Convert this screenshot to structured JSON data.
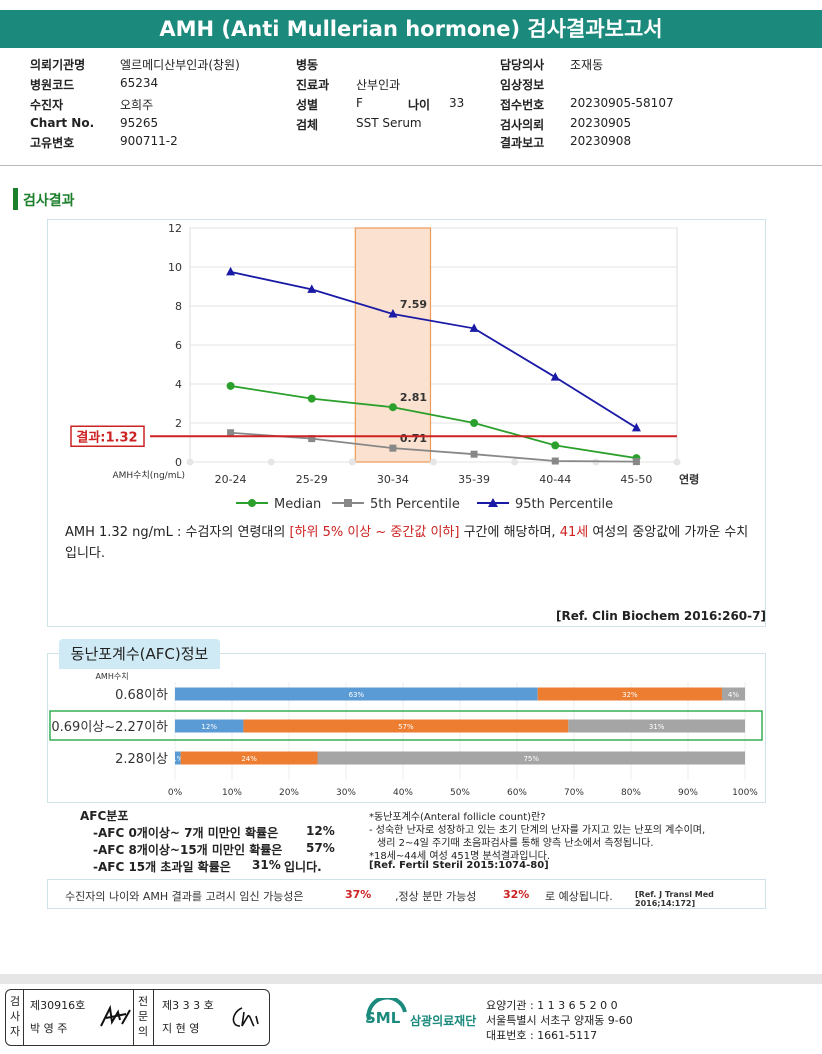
{
  "header": {
    "title": "AMH (Anti Mullerian hormone) 검사결과보고서"
  },
  "info": {
    "institution_label": "의뢰기관명",
    "institution": "엘르메디산부인과(창원)",
    "hospital_code_label": "병원코드",
    "hospital_code": "65234",
    "patient_label": "수진자",
    "patient": "오희주",
    "chart_no_label": "Chart No.",
    "chart_no": "95265",
    "id_label": "고유변호",
    "id": "900711-2",
    "ward_label": "병동",
    "ward": "",
    "dept_label": "진료과",
    "dept": "산부인과",
    "sex_label": "성별",
    "sex": "F",
    "age_label": "나이",
    "age": "33",
    "specimen_label": "검체",
    "specimen": "SST Serum",
    "doctor_label": "담당의사",
    "doctor": "조재동",
    "clinical_label": "임상정보",
    "clinical": "",
    "receipt_label": "접수번호",
    "receipt": "20230905-58107",
    "request_label": "검사의뢰",
    "request": "20230905",
    "report_label": "결과보고",
    "report": "20230908"
  },
  "section": {
    "title": "검사결과"
  },
  "chart_data": {
    "type": "line",
    "categories": [
      "20-24",
      "25-29",
      "30-34",
      "35-39",
      "40-44",
      "45-50"
    ],
    "ylim": [
      0,
      12
    ],
    "yticks": [
      0,
      2,
      4,
      6,
      8,
      10,
      12
    ],
    "ylabel": "AMH수치(ng/mL)",
    "xlabel": "연령",
    "highlight_category": "30-34",
    "series": [
      {
        "name": "Median",
        "color": "#2ca02c",
        "marker": "circle",
        "values": [
          3.9,
          3.25,
          2.81,
          2.0,
          0.85,
          0.2
        ]
      },
      {
        "name": "5th Percentile",
        "color": "#888888",
        "marker": "square",
        "values": [
          1.5,
          1.2,
          0.71,
          0.4,
          0.05,
          0.02
        ]
      },
      {
        "name": "95th Percentile",
        "color": "#1a1aa6",
        "marker": "triangle",
        "values": [
          9.75,
          8.85,
          7.59,
          6.85,
          4.35,
          1.75
        ]
      }
    ],
    "data_labels": [
      "7.59",
      "2.81",
      "0.71"
    ],
    "result": {
      "label": "결과:1.32",
      "value": 1.32,
      "color": "#cc2222"
    }
  },
  "explain": {
    "part1": "AMH  1.32 ng/mL : 수검자의 연령대의 ",
    "range": "[하위 5% 이상 ~ 중간값 이하]",
    "part2": " 구간에 해당하며, ",
    "age": "41세",
    "part3": " 여성의 중앙값에 가까운 수치입니다.",
    "ref": "[Ref. Clin Biochem 2016:260-7]"
  },
  "afc": {
    "tab": "동난포계수(AFC)정보",
    "axis_title": "AMH수치",
    "xticks": [
      "0%",
      "10%",
      "20%",
      "30%",
      "40%",
      "50%",
      "60%",
      "70%",
      "80%",
      "90%",
      "100%"
    ],
    "highlight_row": 1,
    "rows": [
      {
        "label": "0.68이하",
        "segments": [
          63,
          32,
          4
        ],
        "seg_labels": [
          "63%",
          "32%",
          "4%"
        ]
      },
      {
        "label": "0.69이상~2.27이하",
        "segments": [
          12,
          57,
          31
        ],
        "seg_labels": [
          "12%",
          "57%",
          "31%"
        ]
      },
      {
        "label": "2.28이상",
        "segments": [
          1,
          24,
          75
        ],
        "seg_labels": [
          "1%",
          "24%",
          "75%"
        ]
      }
    ],
    "segment_colors": [
      "#5b9bd5",
      "#ed7d31",
      "#a5a5a5"
    ]
  },
  "afc_notes": {
    "heading": "AFC분포",
    "line1": "-AFC 0개이상~ 7개 미만인 확률은",
    "val1": "12%",
    "line2": "-AFC 8개이상~15개 미만인 확률은",
    "val2": "57%",
    "line3a": "-AFC 15개 초과일 확률은",
    "val3": "31%",
    "line3b": "입니다.",
    "def_title": "*동난포계수(Anteral follicle count)란?",
    "def1": "- 성숙한 난자로 성장하고 있는 초기 단계의 난자를 가지고 있는 난포의 계수이며,",
    "def2": "생리 2~4일 주기때 초음파검사를 통해 양측 난소에서 측정됩니다.",
    "def3": "*18세~44세 여성 451명 분석결과입니다.",
    "def_ref": "[Ref. Fertil Steril 2015:1074-80]"
  },
  "summary": {
    "part1": "수진자의 나이와 AMH 결과를 고려시 임신 가능성은",
    "val1": "37%",
    "part2": ",정상 분만 가능성",
    "val2": "32%",
    "part3": "로 예상됩니다.",
    "ref": "[Ref. J Transl Med 2016;14:172]"
  },
  "footer": {
    "sign1_role": "검사자",
    "sign1_no": "제30916호",
    "sign1_name": "박 영 주",
    "sign2_role": "전문의",
    "sign2_no": "제3 3 3 호",
    "sign2_name": "지 현 영",
    "logo_text": "SML",
    "org": "삼광의료재단",
    "code": "요양기관 : 1 1 3 6 5 2 0 0",
    "address": "서울특별시 서초구 양재동 9-60",
    "tel": "대표번호 : 1661-5117"
  }
}
